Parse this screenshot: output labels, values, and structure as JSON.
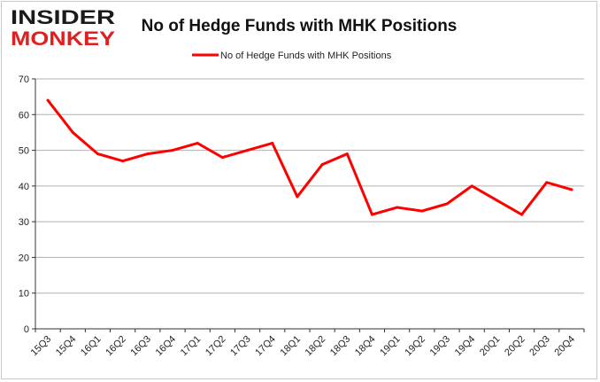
{
  "logo": {
    "line1": "INSIDER",
    "line2": "MONKEY"
  },
  "colors": {
    "series": "#ff0000",
    "grid": "#b0b0b0",
    "axis": "#333333",
    "logo_dark": "#1a1a1a",
    "logo_red": "#e02020"
  },
  "chart_data": {
    "type": "line",
    "title": "No of Hedge Funds with MHK Positions",
    "xlabel": "",
    "ylabel": "",
    "ylim": [
      0,
      70
    ],
    "yticks": [
      0,
      10,
      20,
      30,
      40,
      50,
      60,
      70
    ],
    "grid": true,
    "legend_position": "top-center",
    "categories": [
      "15Q3",
      "15Q4",
      "16Q1",
      "16Q2",
      "16Q3",
      "16Q4",
      "17Q1",
      "17Q2",
      "17Q3",
      "17Q4",
      "18Q1",
      "18Q2",
      "18Q3",
      "18Q4",
      "19Q1",
      "19Q2",
      "19Q3",
      "19Q4",
      "20Q1",
      "20Q2",
      "20Q3",
      "20Q4"
    ],
    "series": [
      {
        "name": "No of Hedge Funds with MHK Positions",
        "values": [
          64,
          55,
          49,
          47,
          49,
          50,
          52,
          48,
          50,
          52,
          37,
          46,
          49,
          32,
          34,
          33,
          35,
          40,
          36,
          32,
          41,
          39
        ]
      }
    ]
  }
}
